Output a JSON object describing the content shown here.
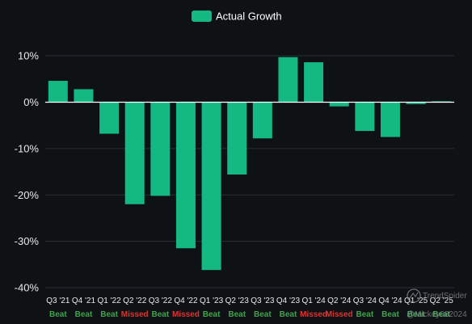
{
  "chart_data": {
    "type": "bar",
    "legend": {
      "label": "Actual Growth",
      "position": "top-center"
    },
    "series": [
      {
        "name": "Actual Growth",
        "color": "#13b981",
        "values": [
          4.6,
          2.8,
          -6.8,
          -22.0,
          -20.2,
          -31.5,
          -36.2,
          -15.6,
          -7.8,
          9.7,
          8.6,
          -0.9,
          -6.2,
          -7.5,
          -0.4,
          0.2
        ]
      }
    ],
    "categories": [
      "Q3 '21",
      "Q4 '21",
      "Q1 '22",
      "Q2 '22",
      "Q3 '22",
      "Q4 '22",
      "Q1 '23",
      "Q2 '23",
      "Q3 '23",
      "Q4 '23",
      "Q1 '24",
      "Q2 '24",
      "Q3 '24",
      "Q4 '24",
      "Q1 '25",
      "Q2 '25"
    ],
    "results": [
      "Beat",
      "Beat",
      "Beat",
      "Missed",
      "Beat",
      "Missed",
      "Beat",
      "Beat",
      "Beat",
      "Beat",
      "Missed",
      "Missed",
      "Beat",
      "Beat",
      "Beat",
      "Beat"
    ],
    "result_colors": {
      "Beat": "#3fa34d",
      "Missed": "#e03131"
    },
    "y_ticks": [
      "10%",
      "0%",
      "-10%",
      "-20%",
      "-30%",
      "-40%"
    ],
    "y_tick_values": [
      10,
      0,
      -10,
      -20,
      -30,
      -40
    ],
    "ylim": [
      -40,
      10
    ],
    "grid": true,
    "title": "",
    "xlabel": "",
    "ylabel": ""
  },
  "watermark": {
    "brand": "TrendSpider",
    "handle": "@Mickey082024"
  }
}
